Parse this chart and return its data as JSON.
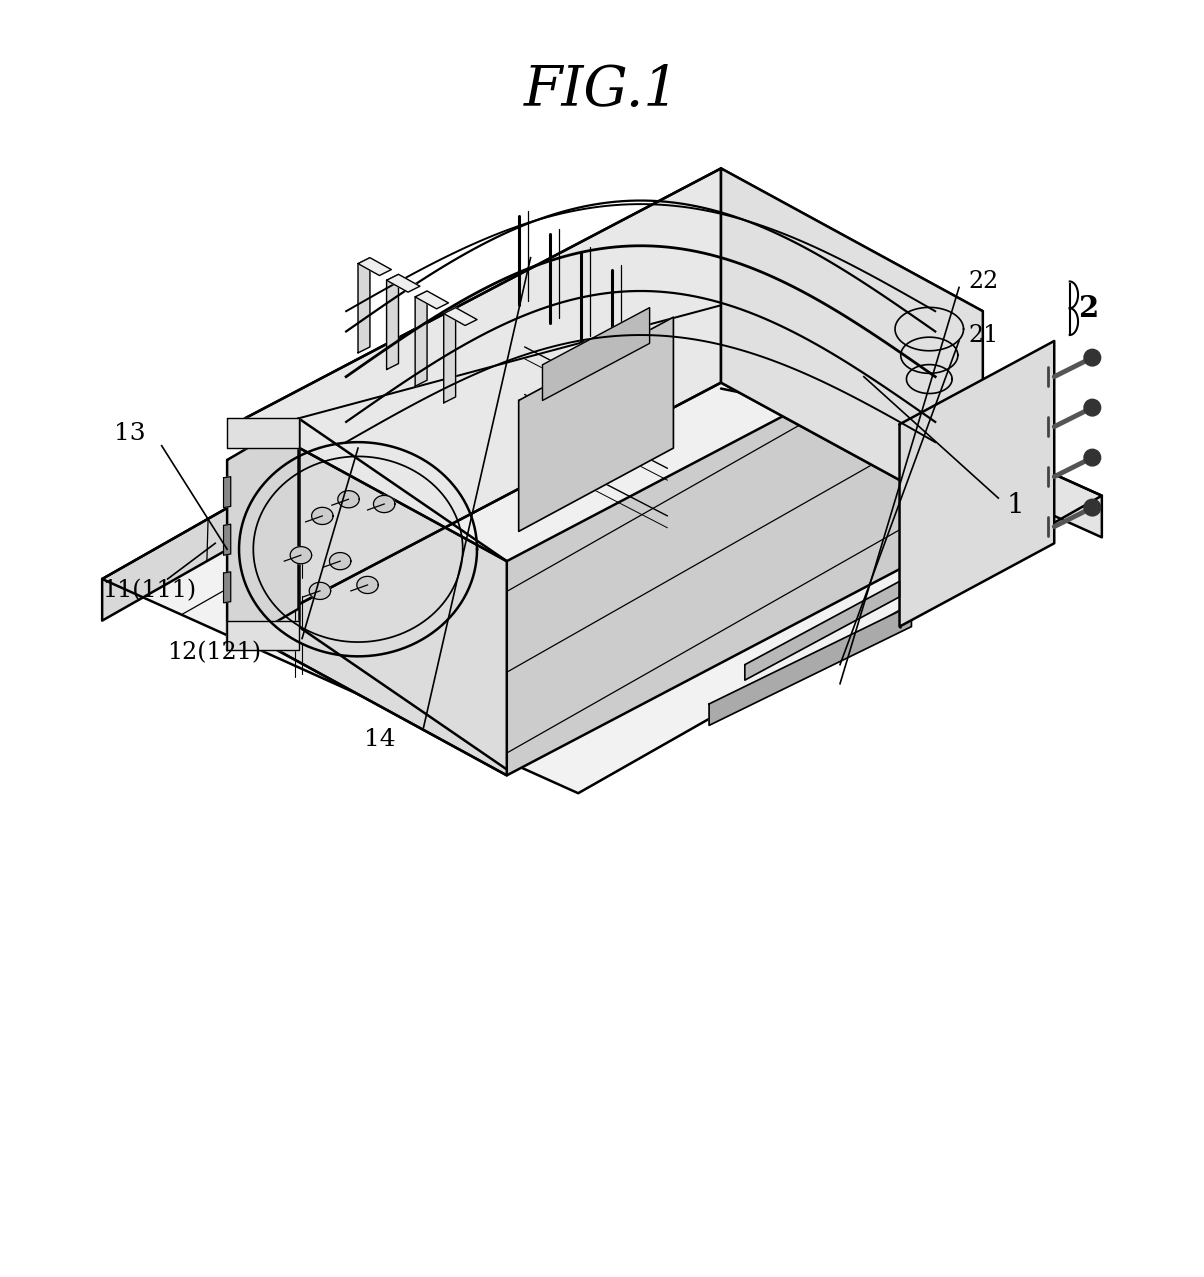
{
  "title": "FIG.1",
  "title_fontsize": 40,
  "title_font": "serif",
  "bg_color": "#ffffff",
  "line_color": "#000000",
  "line_width": 1.8,
  "label_fontsize": 18,
  "fig_width": 12.04,
  "fig_height": 12.77
}
